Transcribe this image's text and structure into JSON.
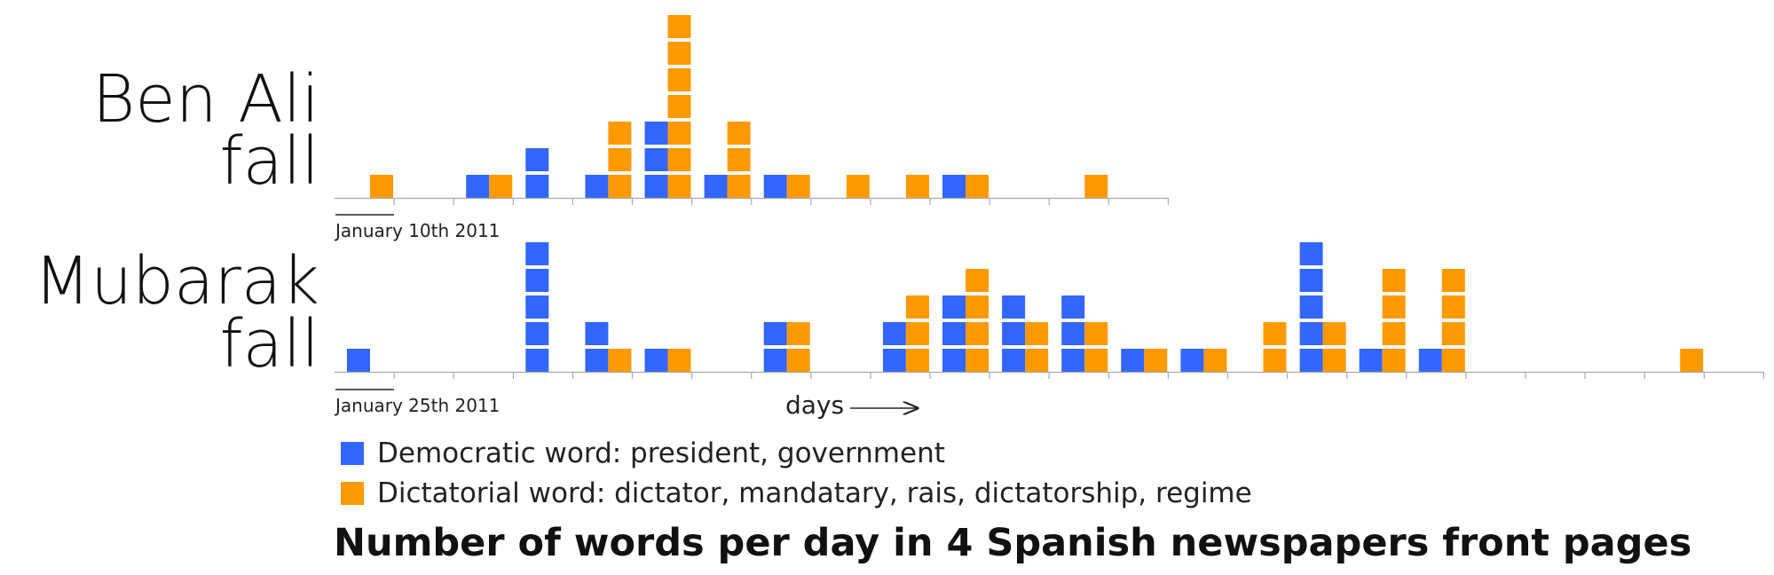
{
  "chart_data": [
    {
      "type": "bar",
      "title": "Ben Ali fall",
      "title_lines": [
        "Ben Ali",
        "fall"
      ],
      "start_label": "January 10th 2011",
      "unit": "days",
      "series": [
        {
          "name": "Democratic word: president, government",
          "color": "#3366ff",
          "values": [
            0,
            0,
            1,
            2,
            1,
            3,
            1,
            1,
            0,
            0,
            1,
            0,
            0,
            0
          ]
        },
        {
          "name": "Dictatorial word: dictator, mandatary, rais, dictatorship, regime",
          "color": "#ff9900",
          "values": [
            1,
            0,
            1,
            0,
            3,
            7,
            3,
            1,
            1,
            1,
            1,
            0,
            1,
            0
          ]
        }
      ]
    },
    {
      "type": "bar",
      "title": "Mubarak fall",
      "title_lines": [
        "Mubarak",
        "fall"
      ],
      "start_label": "January 25th 2011",
      "unit": "days",
      "series": [
        {
          "name": "Democratic word: president, government",
          "color": "#3366ff",
          "values": [
            1,
            0,
            0,
            5,
            2,
            1,
            0,
            2,
            0,
            2,
            3,
            3,
            3,
            1,
            1,
            0,
            5,
            1,
            1,
            0,
            0,
            0,
            0,
            0
          ]
        },
        {
          "name": "Dictatorial word: dictator, mandatary, rais, dictatorship, regime",
          "color": "#ff9900",
          "values": [
            0,
            0,
            0,
            0,
            1,
            1,
            0,
            2,
            0,
            3,
            4,
            2,
            2,
            1,
            1,
            2,
            2,
            4,
            4,
            0,
            0,
            0,
            1,
            0
          ]
        }
      ]
    }
  ],
  "axis": {
    "unit_label": "days"
  },
  "legend": [
    {
      "label": "Democratic word: president, government",
      "color": "#3366ff"
    },
    {
      "label": "Dictatorial word: dictator, mandatary, rais, dictatorship, regime",
      "color": "#ff9900"
    }
  ],
  "caption": "Number of words per day in 4 Spanish newspapers front pages"
}
